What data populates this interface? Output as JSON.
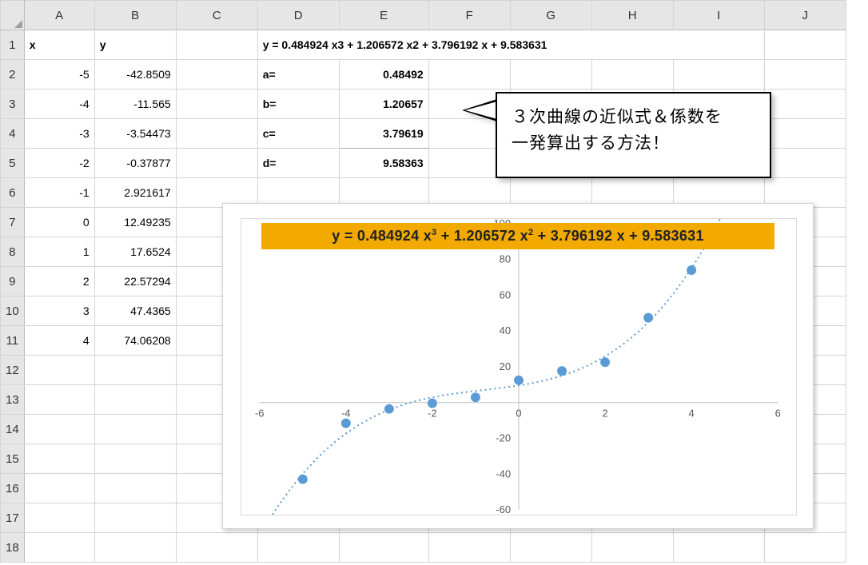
{
  "columns": [
    "A",
    "B",
    "C",
    "D",
    "E",
    "F",
    "G",
    "H",
    "I",
    "J"
  ],
  "row_count": 18,
  "headers": {
    "A1": "x",
    "B1": "y"
  },
  "equation_text": "y = 0.484924 x3 + 1.206572 x2 + 3.796192 x + 9.583631",
  "coeffs": {
    "a_label": "a=",
    "a_value": "0.48492",
    "b_label": "b=",
    "b_value": "1.20657",
    "c_label": "c=",
    "c_value": "3.79619",
    "d_label": "d=",
    "d_value": "9.58363"
  },
  "xy": [
    {
      "x": "-5",
      "y": "-42.8509"
    },
    {
      "x": "-4",
      "y": "-11.565"
    },
    {
      "x": "-3",
      "y": "-3.54473"
    },
    {
      "x": "-2",
      "y": "-0.37877"
    },
    {
      "x": "-1",
      "y": "2.921617"
    },
    {
      "x": "0",
      "y": "12.49235"
    },
    {
      "x": "1",
      "y": "17.6524"
    },
    {
      "x": "2",
      "y": "22.57294"
    },
    {
      "x": "3",
      "y": "47.4365"
    },
    {
      "x": "4",
      "y": "74.06208"
    }
  ],
  "callout": {
    "line1": "３次曲線の近似式＆係数を",
    "line2": "一発算出する方法！"
  },
  "chart": {
    "type": "scatter",
    "title_html": "y = 0.484924 x<sup>3</sup> + 1.206572 x<sup>2</sup> + 3.796192 x + 9.583631",
    "xlim": [
      -6,
      6
    ],
    "ylim": [
      -60,
      100
    ],
    "xtick_step": 2,
    "ytick_step": 20,
    "background_color": "#ffffff",
    "grid_color": "#e0e0e0",
    "axis_label_color": "#595959",
    "axis_label_fontsize": 13,
    "title_bg": "#f2a900",
    "title_color": "#222222",
    "title_fontsize": 18,
    "marker_color": "#5b9bd5",
    "marker_radius": 6,
    "trend_color": "#5b9bd5",
    "trend_width": 2,
    "trend_dash": "2 4",
    "plot_border": "#d9d9d9",
    "points": [
      {
        "x": -5,
        "y": -42.8509
      },
      {
        "x": -4,
        "y": -11.565
      },
      {
        "x": -3,
        "y": -3.54473
      },
      {
        "x": -2,
        "y": -0.37877
      },
      {
        "x": -1,
        "y": 2.921617
      },
      {
        "x": 0,
        "y": 12.49235
      },
      {
        "x": 1,
        "y": 17.6524
      },
      {
        "x": 2,
        "y": 22.57294
      },
      {
        "x": 3,
        "y": 47.4365
      },
      {
        "x": 4,
        "y": 74.06208
      }
    ],
    "trend_coeffs": [
      0.484924,
      1.206572,
      3.796192,
      9.583631
    ]
  }
}
